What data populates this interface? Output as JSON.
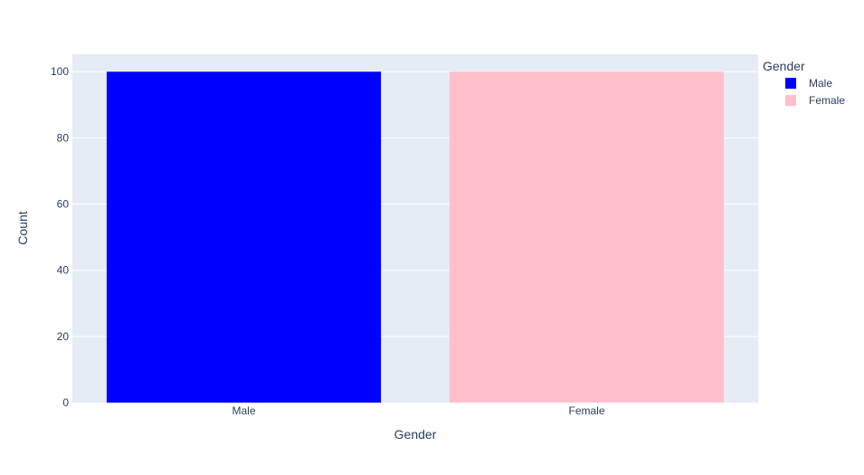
{
  "chart_data": {
    "type": "bar",
    "categories": [
      "Male",
      "Female"
    ],
    "values": [
      100,
      100
    ],
    "colors": [
      "#0000ff",
      "#ffc0cb"
    ],
    "xlabel": "Gender",
    "ylabel": "Count",
    "ylim": [
      0,
      105.26
    ],
    "yticks": [
      0,
      20,
      40,
      60,
      80,
      100
    ],
    "grid": true,
    "plot_background": "#e5ecf6",
    "legend": {
      "title": "Gender",
      "position": "top-right",
      "entries": [
        {
          "name": "Male",
          "color": "#0000ff"
        },
        {
          "name": "Female",
          "color": "#ffc0cb"
        }
      ]
    }
  }
}
